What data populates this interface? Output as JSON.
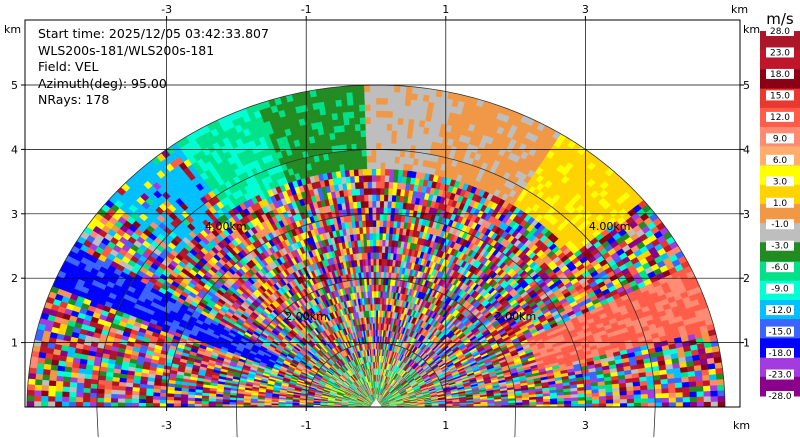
{
  "info": {
    "start_time": "Start time: 2025/12/05 03:42:33.807",
    "source": "WLS200s-181/WLS200s-181",
    "field": "Field: VEL",
    "azimuth": "Azimuth(deg): 95.00",
    "nrays": "NRays: 178"
  },
  "chart_data": {
    "type": "heatmap",
    "title": "",
    "xlabel": "km",
    "ylabel": "km",
    "xlim": [
      -5.3,
      5.3
    ],
    "ylim": [
      0,
      5.4
    ],
    "x_ticks": [
      "-3",
      "-1",
      "1",
      "3"
    ],
    "y_ticks": [
      "1",
      "2",
      "3",
      "4",
      "5"
    ],
    "x_unit": "km",
    "y_unit": "km",
    "range_ring_labels": [
      "2.00km",
      "2.00km",
      "4.00km",
      "4.00km"
    ],
    "max_range_km": 5.0,
    "colorbar": {
      "unit": "m/s",
      "labels": [
        "28.0",
        "23.0",
        "18.0",
        "15.0",
        "12.0",
        "9.0",
        "6.0",
        "3.0",
        "1.0",
        "-1.0",
        "-3.0",
        "-6.0",
        "-9.0",
        "-12.0",
        "-15.0",
        "-18.0",
        "-23.0",
        "-28.0"
      ],
      "colors": [
        "#ab1628",
        "#c0162c",
        "#8c0015",
        "#e8382f",
        "#ff5c4a",
        "#ff8c72",
        "#ffae6e",
        "#ffff00",
        "#ffd300",
        "#f09846",
        "#bebebe",
        "#228b22",
        "#00e28a",
        "#00ffd4",
        "#00c0ff",
        "#3c64ff",
        "#0000ff",
        "#a23cde",
        "#8a008a"
      ]
    }
  }
}
